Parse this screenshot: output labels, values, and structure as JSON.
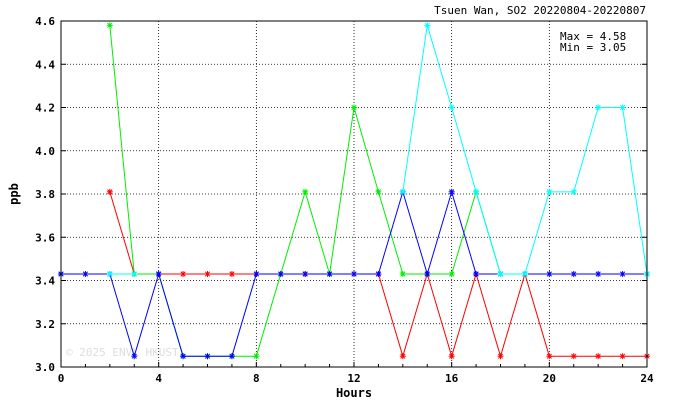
{
  "chart_data": {
    "type": "line",
    "title": "Tsuen Wan, SO2 20220804-20220807",
    "xlabel": "Hours",
    "ylabel": "ppb",
    "xlim": [
      0,
      24
    ],
    "ylim": [
      3.0,
      4.6
    ],
    "xticks": [
      0,
      4,
      8,
      12,
      16,
      20,
      24
    ],
    "yticks": [
      3.0,
      3.2,
      3.4,
      3.6,
      3.8,
      4.0,
      4.2,
      4.4,
      4.6
    ],
    "grid": true,
    "annotations": {
      "max": "Max = 4.58",
      "min": "Min = 3.05"
    },
    "watermark": "© 2025 ENVL HKUST",
    "x": [
      0,
      1,
      2,
      3,
      4,
      5,
      6,
      7,
      8,
      9,
      10,
      11,
      12,
      13,
      14,
      15,
      16,
      17,
      18,
      19,
      20,
      21,
      22,
      23,
      24
    ],
    "series": [
      {
        "color": "#ff0000",
        "values": [
          3.43,
          null,
          3.81,
          3.43,
          3.43,
          3.43,
          3.43,
          3.43,
          3.43,
          3.43,
          3.43,
          3.43,
          3.43,
          3.43,
          3.05,
          3.43,
          3.05,
          3.43,
          3.05,
          3.43,
          3.05,
          3.05,
          3.05,
          3.05,
          3.05
        ]
      },
      {
        "color": "#00ee00",
        "values": [
          3.43,
          null,
          4.58,
          3.43,
          3.43,
          3.05,
          3.05,
          3.05,
          3.05,
          3.43,
          3.81,
          3.43,
          4.2,
          3.81,
          3.43,
          3.43,
          3.43,
          3.81,
          3.43,
          3.43,
          null,
          null,
          null,
          null,
          null
        ]
      },
      {
        "color": "#0000ff",
        "values": [
          3.43,
          3.43,
          3.43,
          3.05,
          3.43,
          3.05,
          3.05,
          3.05,
          3.43,
          3.43,
          3.43,
          3.43,
          3.43,
          3.43,
          3.81,
          3.43,
          3.81,
          3.43,
          3.43,
          3.43,
          3.43,
          3.43,
          3.43,
          3.43,
          3.43
        ]
      },
      {
        "color": "#00ffff",
        "values": [
          null,
          null,
          3.43,
          3.43,
          null,
          null,
          null,
          null,
          null,
          null,
          null,
          null,
          null,
          null,
          3.81,
          4.58,
          4.2,
          3.81,
          3.43,
          3.43,
          3.81,
          3.81,
          4.2,
          4.2,
          3.43
        ]
      }
    ]
  }
}
